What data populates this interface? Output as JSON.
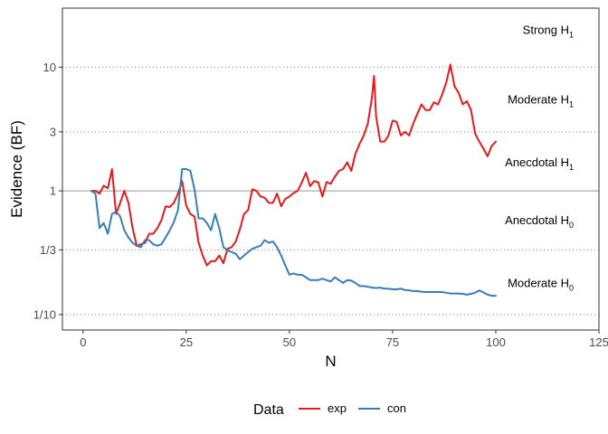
{
  "chart_data": {
    "type": "line",
    "xlabel": "N",
    "ylabel": "Evidence (BF)",
    "xlim": [
      -5,
      125
    ],
    "x_ticks": [
      0,
      25,
      50,
      75,
      100,
      125
    ],
    "x_tick_labels": [
      "0",
      "25",
      "50",
      "75",
      "100",
      "125"
    ],
    "y_scale": "log",
    "ylim": [
      0.075,
      30
    ],
    "y_ticks": [
      0.1,
      0.3333,
      1,
      3,
      10
    ],
    "y_tick_labels": [
      "1/10",
      "1/3",
      "1",
      "3",
      "10"
    ],
    "reference_line": {
      "y": 1,
      "color": "#999999"
    },
    "dotted_gridlines_y": [
      0.1,
      0.3333,
      3,
      10
    ],
    "region_labels": [
      {
        "base": "Strong H",
        "sub": "1",
        "y": 20
      },
      {
        "base": "Moderate H",
        "sub": "1",
        "y": 5.5
      },
      {
        "base": "Anecdotal H",
        "sub": "1",
        "y": 1.7
      },
      {
        "base": "Anecdotal H",
        "sub": "0",
        "y": 0.58
      },
      {
        "base": "Moderate H",
        "sub": "0",
        "y": 0.18
      }
    ],
    "legend": {
      "title": "Data",
      "position": "bottom",
      "entries": [
        {
          "label": "exp",
          "color": "#e41a1c"
        },
        {
          "label": "con",
          "color": "#377eb8"
        }
      ]
    },
    "series": [
      {
        "name": "exp",
        "color": "#e41a1c",
        "points": [
          [
            2,
            1
          ],
          [
            3,
            1
          ],
          [
            4,
            0.95
          ],
          [
            5,
            1.1
          ],
          [
            6,
            1.05
          ],
          [
            7,
            1.5
          ],
          [
            8,
            0.65
          ],
          [
            9,
            0.8
          ],
          [
            10,
            1
          ],
          [
            11,
            0.8
          ],
          [
            12,
            0.5
          ],
          [
            13,
            0.36
          ],
          [
            14,
            0.37
          ],
          [
            15,
            0.38
          ],
          [
            16,
            0.45
          ],
          [
            17,
            0.45
          ],
          [
            18,
            0.5
          ],
          [
            19,
            0.58
          ],
          [
            20,
            0.75
          ],
          [
            21,
            0.74
          ],
          [
            22,
            0.8
          ],
          [
            23,
            0.95
          ],
          [
            24,
            1.2
          ],
          [
            25,
            0.76
          ],
          [
            26,
            0.65
          ],
          [
            27,
            0.62
          ],
          [
            28,
            0.38
          ],
          [
            29,
            0.3
          ],
          [
            30,
            0.25
          ],
          [
            31,
            0.27
          ],
          [
            32,
            0.27
          ],
          [
            33,
            0.3
          ],
          [
            34,
            0.26
          ],
          [
            35,
            0.34
          ],
          [
            36,
            0.35
          ],
          [
            37,
            0.39
          ],
          [
            38,
            0.49
          ],
          [
            39,
            0.65
          ],
          [
            40,
            0.7
          ],
          [
            41,
            1.03
          ],
          [
            42,
            1
          ],
          [
            43,
            0.9
          ],
          [
            44,
            0.88
          ],
          [
            45,
            0.8
          ],
          [
            46,
            0.8
          ],
          [
            47,
            0.95
          ],
          [
            48,
            0.75
          ],
          [
            49,
            0.86
          ],
          [
            50,
            0.9
          ],
          [
            51,
            0.96
          ],
          [
            52,
            1
          ],
          [
            53,
            1.17
          ],
          [
            54,
            1.4
          ],
          [
            55,
            1.09
          ],
          [
            56,
            1.2
          ],
          [
            57,
            1.17
          ],
          [
            58,
            0.9
          ],
          [
            59,
            1.18
          ],
          [
            60,
            1.14
          ],
          [
            61,
            1.3
          ],
          [
            62,
            1.45
          ],
          [
            63,
            1.5
          ],
          [
            64,
            1.7
          ],
          [
            65,
            1.45
          ],
          [
            66,
            2
          ],
          [
            67,
            2.4
          ],
          [
            68,
            2.8
          ],
          [
            69,
            3.5
          ],
          [
            70,
            5.7
          ],
          [
            70.5,
            8.5
          ],
          [
            71,
            4
          ],
          [
            72,
            2.5
          ],
          [
            73,
            2.5
          ],
          [
            74,
            2.8
          ],
          [
            75,
            3.7
          ],
          [
            76,
            3.6
          ],
          [
            77,
            2.8
          ],
          [
            78,
            3
          ],
          [
            79,
            2.8
          ],
          [
            80,
            3.5
          ],
          [
            81,
            4.2
          ],
          [
            82,
            5
          ],
          [
            83,
            4.5
          ],
          [
            84,
            4.5
          ],
          [
            85,
            5.2
          ],
          [
            86,
            5
          ],
          [
            87,
            6
          ],
          [
            88,
            7.5
          ],
          [
            89,
            10.5
          ],
          [
            90,
            7
          ],
          [
            91,
            6.2
          ],
          [
            92,
            5
          ],
          [
            93,
            5.3
          ],
          [
            94,
            4.5
          ],
          [
            95,
            2.9
          ],
          [
            96,
            2.5
          ],
          [
            97,
            2.2
          ],
          [
            98,
            1.9
          ],
          [
            99,
            2.3
          ],
          [
            100,
            2.5
          ]
        ]
      },
      {
        "name": "con",
        "color": "#377eb8",
        "points": [
          [
            2,
            1
          ],
          [
            3,
            0.95
          ],
          [
            4,
            0.5
          ],
          [
            5,
            0.55
          ],
          [
            6,
            0.45
          ],
          [
            7,
            0.65
          ],
          [
            8,
            0.68
          ],
          [
            9,
            0.62
          ],
          [
            10,
            0.48
          ],
          [
            11,
            0.42
          ],
          [
            12,
            0.38
          ],
          [
            13,
            0.36
          ],
          [
            14,
            0.35
          ],
          [
            15,
            0.4
          ],
          [
            16,
            0.4
          ],
          [
            17,
            0.37
          ],
          [
            18,
            0.36
          ],
          [
            19,
            0.37
          ],
          [
            20,
            0.42
          ],
          [
            21,
            0.48
          ],
          [
            22,
            0.56
          ],
          [
            23,
            0.7
          ],
          [
            24,
            1.5
          ],
          [
            25,
            1.5
          ],
          [
            26,
            1.45
          ],
          [
            27,
            1.03
          ],
          [
            28,
            0.6
          ],
          [
            29,
            0.6
          ],
          [
            30,
            0.55
          ],
          [
            31,
            0.48
          ],
          [
            32,
            0.65
          ],
          [
            33,
            0.5
          ],
          [
            34,
            0.35
          ],
          [
            35,
            0.33
          ],
          [
            36,
            0.32
          ],
          [
            37,
            0.31
          ],
          [
            38,
            0.28
          ],
          [
            39,
            0.3
          ],
          [
            40,
            0.32
          ],
          [
            41,
            0.34
          ],
          [
            42,
            0.35
          ],
          [
            43,
            0.36
          ],
          [
            44,
            0.4
          ],
          [
            45,
            0.38
          ],
          [
            46,
            0.39
          ],
          [
            47,
            0.35
          ],
          [
            48,
            0.3
          ],
          [
            49,
            0.25
          ],
          [
            50,
            0.21
          ],
          [
            51,
            0.215
          ],
          [
            52,
            0.21
          ],
          [
            53,
            0.21
          ],
          [
            54,
            0.2
          ],
          [
            55,
            0.19
          ],
          [
            56,
            0.19
          ],
          [
            57,
            0.19
          ],
          [
            58,
            0.195
          ],
          [
            59,
            0.19
          ],
          [
            60,
            0.185
          ],
          [
            61,
            0.2
          ],
          [
            62,
            0.19
          ],
          [
            63,
            0.18
          ],
          [
            64,
            0.19
          ],
          [
            65,
            0.188
          ],
          [
            66,
            0.18
          ],
          [
            67,
            0.17
          ],
          [
            68,
            0.17
          ],
          [
            69,
            0.168
          ],
          [
            70,
            0.165
          ],
          [
            71,
            0.164
          ],
          [
            72,
            0.165
          ],
          [
            73,
            0.162
          ],
          [
            74,
            0.162
          ],
          [
            75,
            0.16
          ],
          [
            76,
            0.16
          ],
          [
            77,
            0.162
          ],
          [
            78,
            0.158
          ],
          [
            79,
            0.157
          ],
          [
            80,
            0.155
          ],
          [
            81,
            0.155
          ],
          [
            82,
            0.153
          ],
          [
            83,
            0.152
          ],
          [
            84,
            0.152
          ],
          [
            85,
            0.152
          ],
          [
            86,
            0.152
          ],
          [
            87,
            0.152
          ],
          [
            88,
            0.15
          ],
          [
            89,
            0.148
          ],
          [
            90,
            0.148
          ],
          [
            91,
            0.148
          ],
          [
            92,
            0.147
          ],
          [
            93,
            0.145
          ],
          [
            94,
            0.147
          ],
          [
            95,
            0.15
          ],
          [
            96,
            0.157
          ],
          [
            97,
            0.151
          ],
          [
            98,
            0.145
          ],
          [
            99,
            0.142
          ],
          [
            100,
            0.142
          ]
        ]
      }
    ]
  }
}
